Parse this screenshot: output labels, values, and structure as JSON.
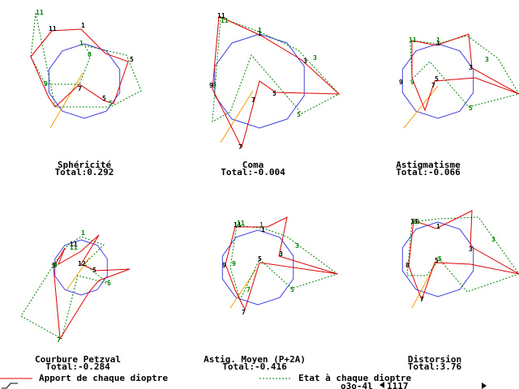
{
  "colors": {
    "apport": "#e00000",
    "etat": "#008000",
    "circle": "#4040e0",
    "ray": "#f0a000",
    "text": "#000000"
  },
  "panels": [
    {
      "title": "Sphéricité",
      "total": "Total:0.292"
    },
    {
      "title": "Coma",
      "total": "Total:-0.004"
    },
    {
      "title": "Astigmatisme",
      "total": "Total:-0.066"
    },
    {
      "title": "Courbure Petzval",
      "total": "Total:-0.284"
    },
    {
      "title": "Astig. Moyen (P+2A)",
      "total": "Total:-0.416"
    },
    {
      "title": "Distorsion",
      "total": "Total:3.76"
    }
  ],
  "legend": {
    "apport": "Apport de chaque dioptre",
    "etat": "Etat à chaque dioptre"
  },
  "footer": {
    "code": "o3o-4l",
    "index": "1117"
  }
}
